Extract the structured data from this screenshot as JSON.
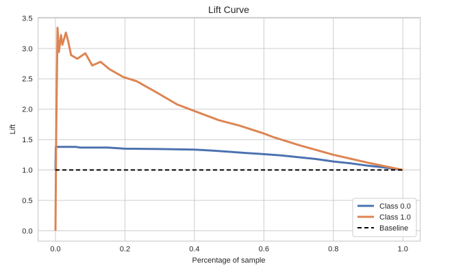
{
  "chart_data": {
    "type": "line",
    "title": "Lift Curve",
    "xlabel": "Percentage of sample",
    "ylabel": "Lift",
    "xlim": [
      -0.05,
      1.05
    ],
    "ylim": [
      -0.17,
      3.51
    ],
    "xticks": [
      "0.0",
      "0.2",
      "0.4",
      "0.6",
      "0.8",
      "1.0"
    ],
    "yticks": [
      "0.0",
      "0.5",
      "1.0",
      "1.5",
      "2.0",
      "2.5",
      "3.0",
      "3.5"
    ],
    "grid": true,
    "legend_position": "lower-right",
    "series": [
      {
        "name": "Class 0.0",
        "color": "#4c72b0",
        "style": "solid",
        "x": [
          0,
          0.001,
          0.06,
          0.07,
          0.15,
          0.2,
          0.3,
          0.4,
          0.45,
          0.5,
          0.55,
          0.6,
          0.65,
          0.7,
          0.75,
          0.8,
          0.85,
          0.9,
          0.95,
          1.0
        ],
        "y": [
          1.0,
          1.38,
          1.38,
          1.37,
          1.37,
          1.35,
          1.345,
          1.335,
          1.32,
          1.3,
          1.28,
          1.26,
          1.24,
          1.21,
          1.18,
          1.14,
          1.11,
          1.07,
          1.04,
          1.0
        ]
      },
      {
        "name": "Class 1.0",
        "color": "#dd8452",
        "style": "solid",
        "x": [
          0,
          0.002,
          0.006,
          0.01,
          0.016,
          0.02,
          0.03,
          0.037,
          0.045,
          0.063,
          0.086,
          0.106,
          0.13,
          0.155,
          0.195,
          0.234,
          0.293,
          0.35,
          0.4,
          0.47,
          0.53,
          0.6,
          0.628,
          0.7,
          0.8,
          0.9,
          1.0
        ],
        "y": [
          0,
          1.54,
          3.34,
          2.94,
          3.22,
          3.06,
          3.26,
          3.11,
          2.89,
          2.83,
          2.92,
          2.72,
          2.78,
          2.66,
          2.53,
          2.46,
          2.27,
          2.08,
          1.97,
          1.82,
          1.73,
          1.6,
          1.54,
          1.41,
          1.25,
          1.12,
          1.0
        ]
      },
      {
        "name": "Baseline",
        "color": "#000000",
        "style": "dashed",
        "x": [
          0,
          1
        ],
        "y": [
          1,
          1
        ]
      }
    ]
  }
}
